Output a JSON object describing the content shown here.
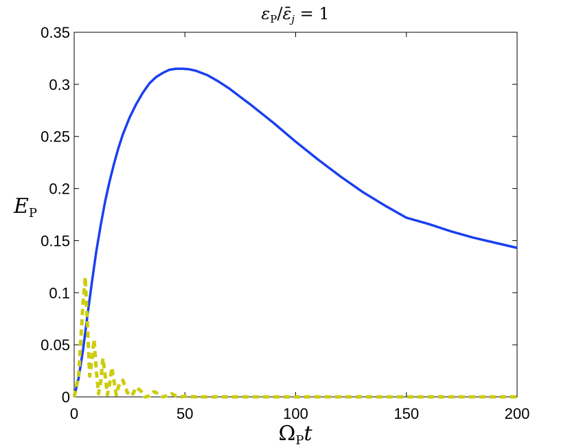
{
  "chart_data": {
    "type": "line",
    "title": "εP/ε̄j = 1",
    "title_parts": {
      "eps": "ε",
      "sub_p": "P",
      "slash": "/",
      "epsbar": "ε̄",
      "sub_j": "j",
      "eq": " = 1"
    },
    "xlabel": "ΩPt",
    "xlabel_parts": {
      "omega": "Ω",
      "sub_p": "P",
      "t": "t"
    },
    "ylabel": "EP",
    "ylabel_parts": {
      "e": "E",
      "sub_p": "P"
    },
    "xlim": [
      0,
      200
    ],
    "ylim": [
      0,
      0.35
    ],
    "xticks": [
      0,
      50,
      100,
      150,
      200
    ],
    "xtick_labels": [
      "0",
      "50",
      "100",
      "150",
      "200"
    ],
    "yticks": [
      0,
      0.05,
      0.1,
      0.15,
      0.2,
      0.25,
      0.3,
      0.35
    ],
    "ytick_labels": [
      "0",
      "0.05",
      "0.1",
      "0.15",
      "0.2",
      "0.25",
      "0.3",
      "0.35"
    ],
    "grid": false,
    "series": [
      {
        "style": "solid",
        "color": "#1a3ff0",
        "x": [
          0,
          2,
          4,
          6,
          8,
          10,
          12,
          14,
          16,
          18,
          20,
          22,
          25,
          28,
          31,
          34,
          37,
          40,
          43,
          46,
          49,
          52,
          55,
          60,
          65,
          70,
          75,
          80,
          90,
          100,
          110,
          120,
          130,
          140,
          150,
          160,
          170,
          180,
          190,
          200
        ],
        "y": [
          0,
          0.018,
          0.045,
          0.078,
          0.11,
          0.14,
          0.165,
          0.188,
          0.207,
          0.224,
          0.239,
          0.252,
          0.268,
          0.281,
          0.292,
          0.301,
          0.307,
          0.311,
          0.314,
          0.315,
          0.315,
          0.3145,
          0.313,
          0.309,
          0.303,
          0.296,
          0.288,
          0.28,
          0.263,
          0.245,
          0.228,
          0.212,
          0.197,
          0.184,
          0.172,
          0.166,
          0.159,
          0.153,
          0.148,
          0.143
        ]
      },
      {
        "style": "dashed",
        "color": "#cccc10",
        "x": [
          0,
          2,
          4,
          5,
          6,
          7,
          8,
          9,
          10,
          11,
          12,
          13,
          14,
          15,
          16,
          17,
          18,
          19,
          20,
          22,
          24,
          26,
          28,
          30,
          32,
          34,
          36,
          38,
          40,
          42,
          44,
          46,
          48,
          50,
          55,
          60,
          70,
          80,
          100,
          150,
          200
        ],
        "y": [
          0,
          0.02,
          0.09,
          0.115,
          0.07,
          0.02,
          0.035,
          0.055,
          0.025,
          0.003,
          0.015,
          0.037,
          0.02,
          0.002,
          0.012,
          0.028,
          0.015,
          0.002,
          0.01,
          0.016,
          0.004,
          0.001,
          0.009,
          0.006,
          0.0,
          0.001,
          0.005,
          0.003,
          0.0,
          0.001,
          0.003,
          0.001,
          0.0,
          0.0005,
          0.0,
          0.0,
          0.0,
          0.0,
          0.0,
          0.0,
          0.0
        ]
      }
    ]
  }
}
